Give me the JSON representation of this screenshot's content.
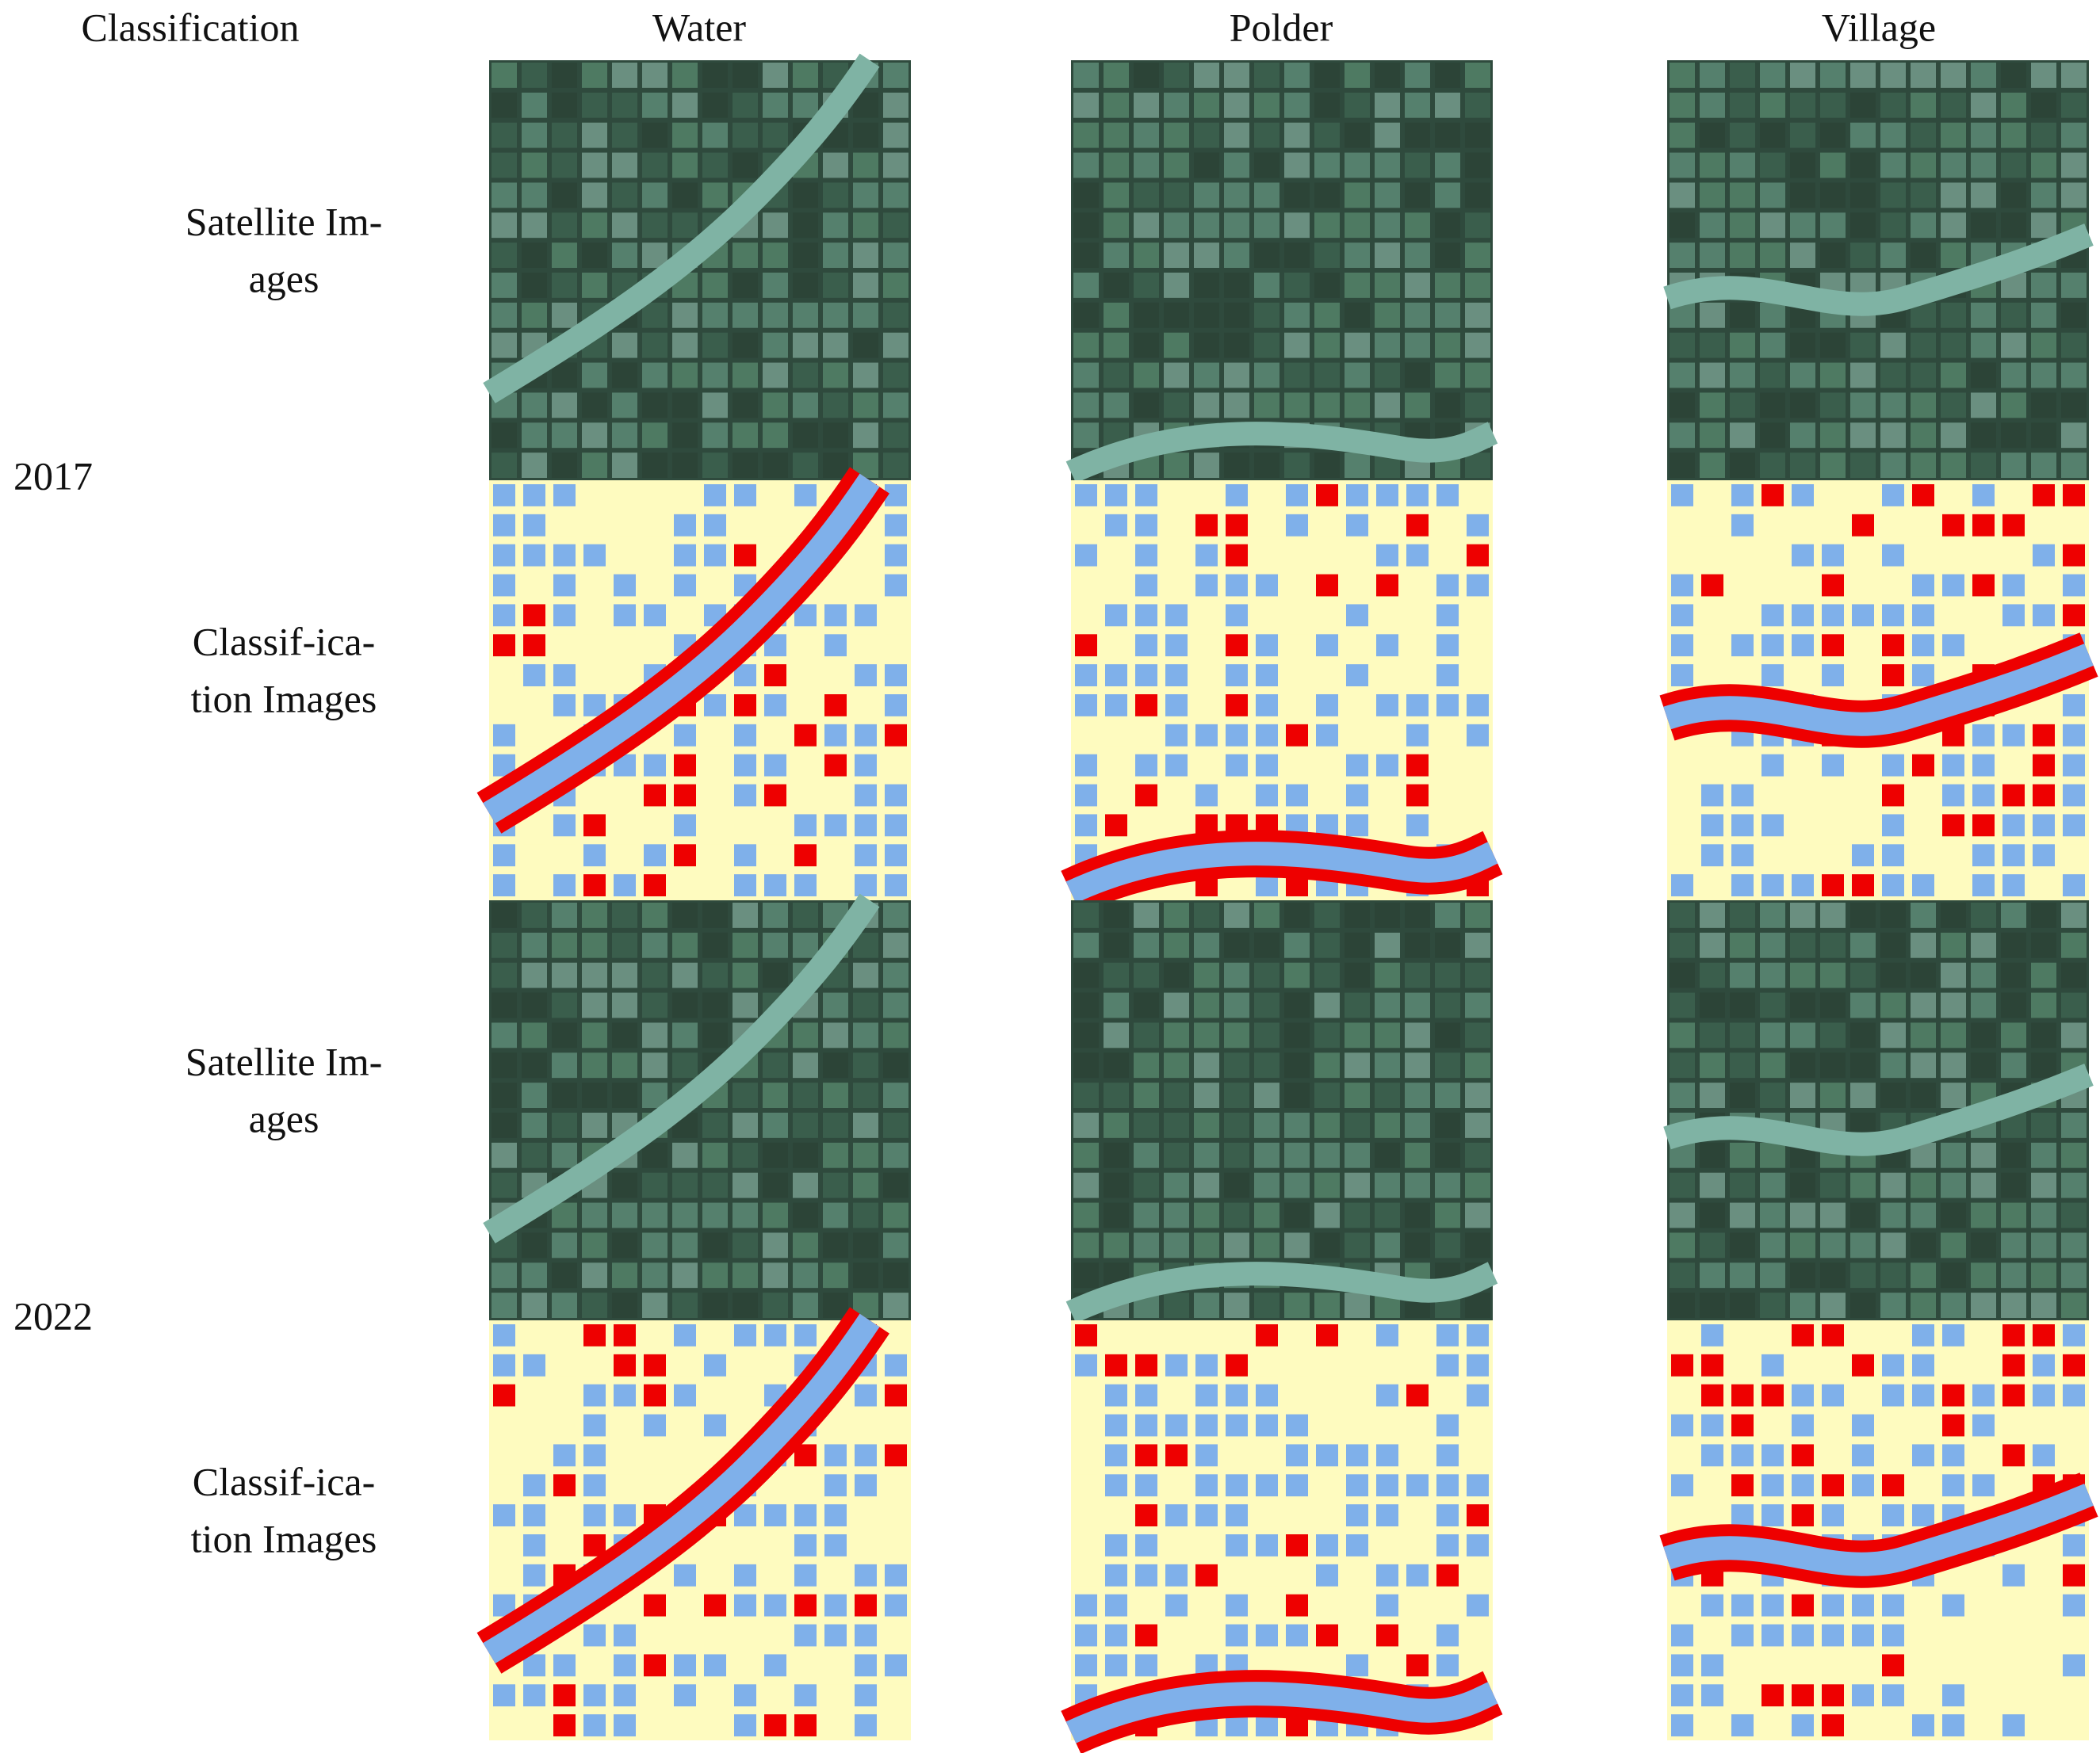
{
  "header": {
    "corner": "Classification",
    "columns": [
      "Water",
      "Polder",
      "Village"
    ]
  },
  "groups": [
    {
      "year": "2017",
      "rows": [
        {
          "label": [
            "Satellite Im-",
            "ages"
          ]
        },
        {
          "label": [
            "Classif-ica-",
            "tion Images"
          ]
        }
      ]
    },
    {
      "year": "2022",
      "rows": [
        {
          "label": [
            "Satellite Im-",
            "ages"
          ]
        },
        {
          "label": [
            "Classif-ica-",
            "tion Images"
          ]
        }
      ]
    }
  ]
}
